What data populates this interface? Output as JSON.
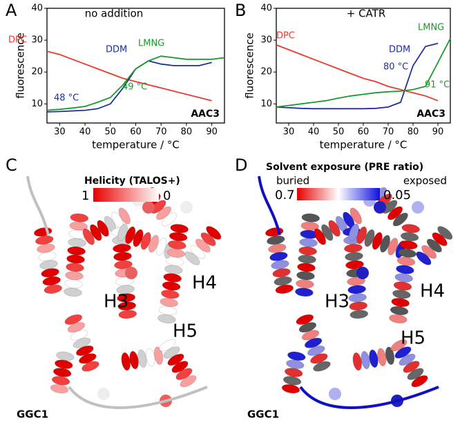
{
  "chart_data": [
    {
      "type": "line",
      "panel_label": "A",
      "annotations": [
        "no addition",
        "AAC3",
        "48 °C",
        "49 °C"
      ],
      "xlabel": "temperature / °C",
      "ylabel": "fluorescence",
      "x": [
        25,
        30,
        35,
        40,
        45,
        50,
        55,
        60,
        65,
        70,
        75,
        80,
        85,
        90,
        95
      ],
      "xlim": [
        25,
        95
      ],
      "xticks": [
        30,
        40,
        50,
        60,
        70,
        80,
        90
      ],
      "ylim": [
        4,
        40
      ],
      "yticks": [
        10,
        20,
        30,
        40
      ],
      "series": [
        {
          "name": "DPC",
          "color": "#e8392b",
          "values": [
            26.5,
            25.5,
            24,
            22.5,
            21,
            19.5,
            18,
            17,
            16,
            15,
            14,
            13,
            12,
            11,
            null
          ]
        },
        {
          "name": "DDM",
          "color": "#1f2f9a",
          "values": [
            7.5,
            7.6,
            7.8,
            8,
            8.5,
            10,
            15,
            21,
            23.5,
            22.5,
            22,
            22,
            22,
            23,
            null
          ]
        },
        {
          "name": "LMNG",
          "color": "#1a9a2a",
          "values": [
            8,
            8.3,
            8.7,
            9.2,
            10.5,
            12,
            16,
            21,
            23.5,
            25,
            24.5,
            24,
            24,
            24,
            24.5
          ]
        }
      ]
    },
    {
      "type": "line",
      "panel_label": "B",
      "annotations": [
        "+ CATR",
        "AAC3",
        "80 °C",
        "91 °C"
      ],
      "xlabel": "temperature / °C",
      "ylabel": "fluorescence",
      "x": [
        25,
        30,
        35,
        40,
        45,
        50,
        55,
        60,
        65,
        70,
        75,
        80,
        85,
        90,
        95
      ],
      "xlim": [
        25,
        95
      ],
      "xticks": [
        30,
        40,
        50,
        60,
        70,
        80,
        90
      ],
      "ylim": [
        4,
        40
      ],
      "yticks": [
        10,
        20,
        30,
        40
      ],
      "series": [
        {
          "name": "DPC",
          "color": "#e8392b",
          "values": [
            28.5,
            27,
            25.5,
            24,
            22.5,
            21,
            19.5,
            18,
            17,
            15.5,
            14.5,
            13.5,
            12.5,
            11,
            null
          ]
        },
        {
          "name": "DDM",
          "color": "#1f2f9a",
          "values": [
            9,
            8.8,
            8.6,
            8.5,
            8.5,
            8.5,
            8.5,
            8.5,
            8.6,
            9,
            10.5,
            22,
            28,
            29,
            null
          ]
        },
        {
          "name": "LMNG",
          "color": "#1a9a2a",
          "values": [
            9,
            9.5,
            10,
            10.5,
            11,
            11.8,
            12.5,
            13,
            13.5,
            13.8,
            14,
            14.5,
            15.5,
            23,
            30.5
          ]
        }
      ]
    }
  ],
  "panels": [
    {
      "panel_label": "C",
      "title": "Helicity (TALOS+)",
      "scale_min": 1,
      "scale_max": 0,
      "helices": [
        "H3",
        "H4",
        "H5"
      ],
      "protein": "GGC1"
    },
    {
      "panel_label": "D",
      "title": "Solvent exposure (PRE ratio)",
      "scale_left": "buried",
      "scale_right": "exposed",
      "scale_min": 0.7,
      "scale_max": 0.05,
      "helices": [
        "H3",
        "H4",
        "H5"
      ],
      "protein": "GGC1"
    }
  ]
}
